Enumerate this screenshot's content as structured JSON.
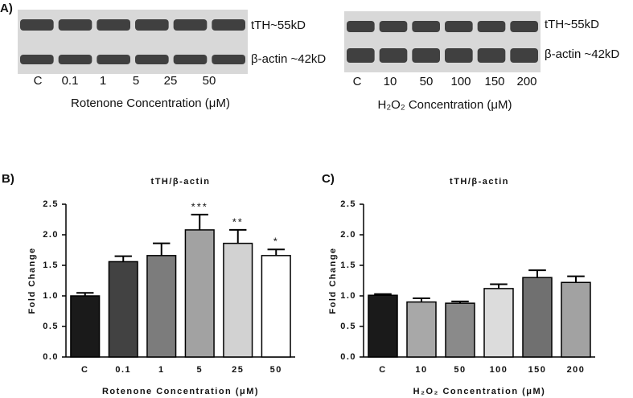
{
  "blots": [
    {
      "panel_label": "A)",
      "bands": [
        "tTH~55kD",
        "β-actin ~42kD"
      ],
      "lanes": [
        "C",
        "0.1",
        "1",
        "5",
        "25",
        "50"
      ],
      "axis_label": "Rotenone Concentration (μM)"
    },
    {
      "bands": [
        "tTH~55kD",
        "β-actin ~42kD"
      ],
      "lanes": [
        "C",
        "10",
        "50",
        "100",
        "150",
        "200"
      ],
      "axis_label": "H₂O₂ Concentration (μM)"
    }
  ],
  "chart_data": [
    {
      "type": "bar",
      "panel_label": "B)",
      "title": "tTH/β-actin",
      "y_label": "Fold Change",
      "x_label": "Rotenone Concentration (μM)",
      "categories": [
        "C",
        "0.1",
        "1",
        "5",
        "25",
        "50"
      ],
      "values": [
        1.0,
        1.56,
        1.66,
        2.08,
        1.86,
        1.66
      ],
      "errors": [
        0.05,
        0.09,
        0.2,
        0.25,
        0.22,
        0.1
      ],
      "colors": [
        "#1a1a1a",
        "#424242",
        "#7c7c7c",
        "#a2a2a2",
        "#d2d2d2",
        "#ffffff"
      ],
      "annotations": [
        null,
        null,
        null,
        "***",
        "**",
        "*"
      ],
      "ylim": [
        0,
        2.5
      ],
      "yticks": [
        {
          "value": 0,
          "label": "0.0"
        },
        {
          "value": 0.5,
          "label": "0.5"
        },
        {
          "value": 1,
          "label": "1.0"
        },
        {
          "value": 1.5,
          "label": "1.5"
        },
        {
          "value": 2,
          "label": "2.0"
        },
        {
          "value": 2.5,
          "label": "2.5"
        }
      ]
    },
    {
      "type": "bar",
      "panel_label": "C)",
      "title": "tTH/β-actin",
      "y_label": "Fold Change",
      "x_label": "H₂O₂ Concentration (μM)",
      "categories": [
        "C",
        "10",
        "50",
        "100",
        "150",
        "200"
      ],
      "values": [
        1.01,
        0.9,
        0.88,
        1.12,
        1.3,
        1.22
      ],
      "errors": [
        0.02,
        0.06,
        0.03,
        0.07,
        0.12,
        0.1
      ],
      "colors": [
        "#1a1a1a",
        "#a8a8a8",
        "#8a8a8a",
        "#dcdcdc",
        "#707070",
        "#a2a2a2"
      ],
      "annotations": [
        null,
        null,
        null,
        null,
        null,
        null
      ],
      "ylim": [
        0,
        2.5
      ],
      "yticks": [
        {
          "value": 0,
          "label": "0.0"
        },
        {
          "value": 0.5,
          "label": "0.5"
        },
        {
          "value": 1,
          "label": "1.0"
        },
        {
          "value": 1.5,
          "label": "1.5"
        },
        {
          "value": 2,
          "label": "2.0"
        },
        {
          "value": 2.5,
          "label": "2.5"
        }
      ]
    }
  ]
}
